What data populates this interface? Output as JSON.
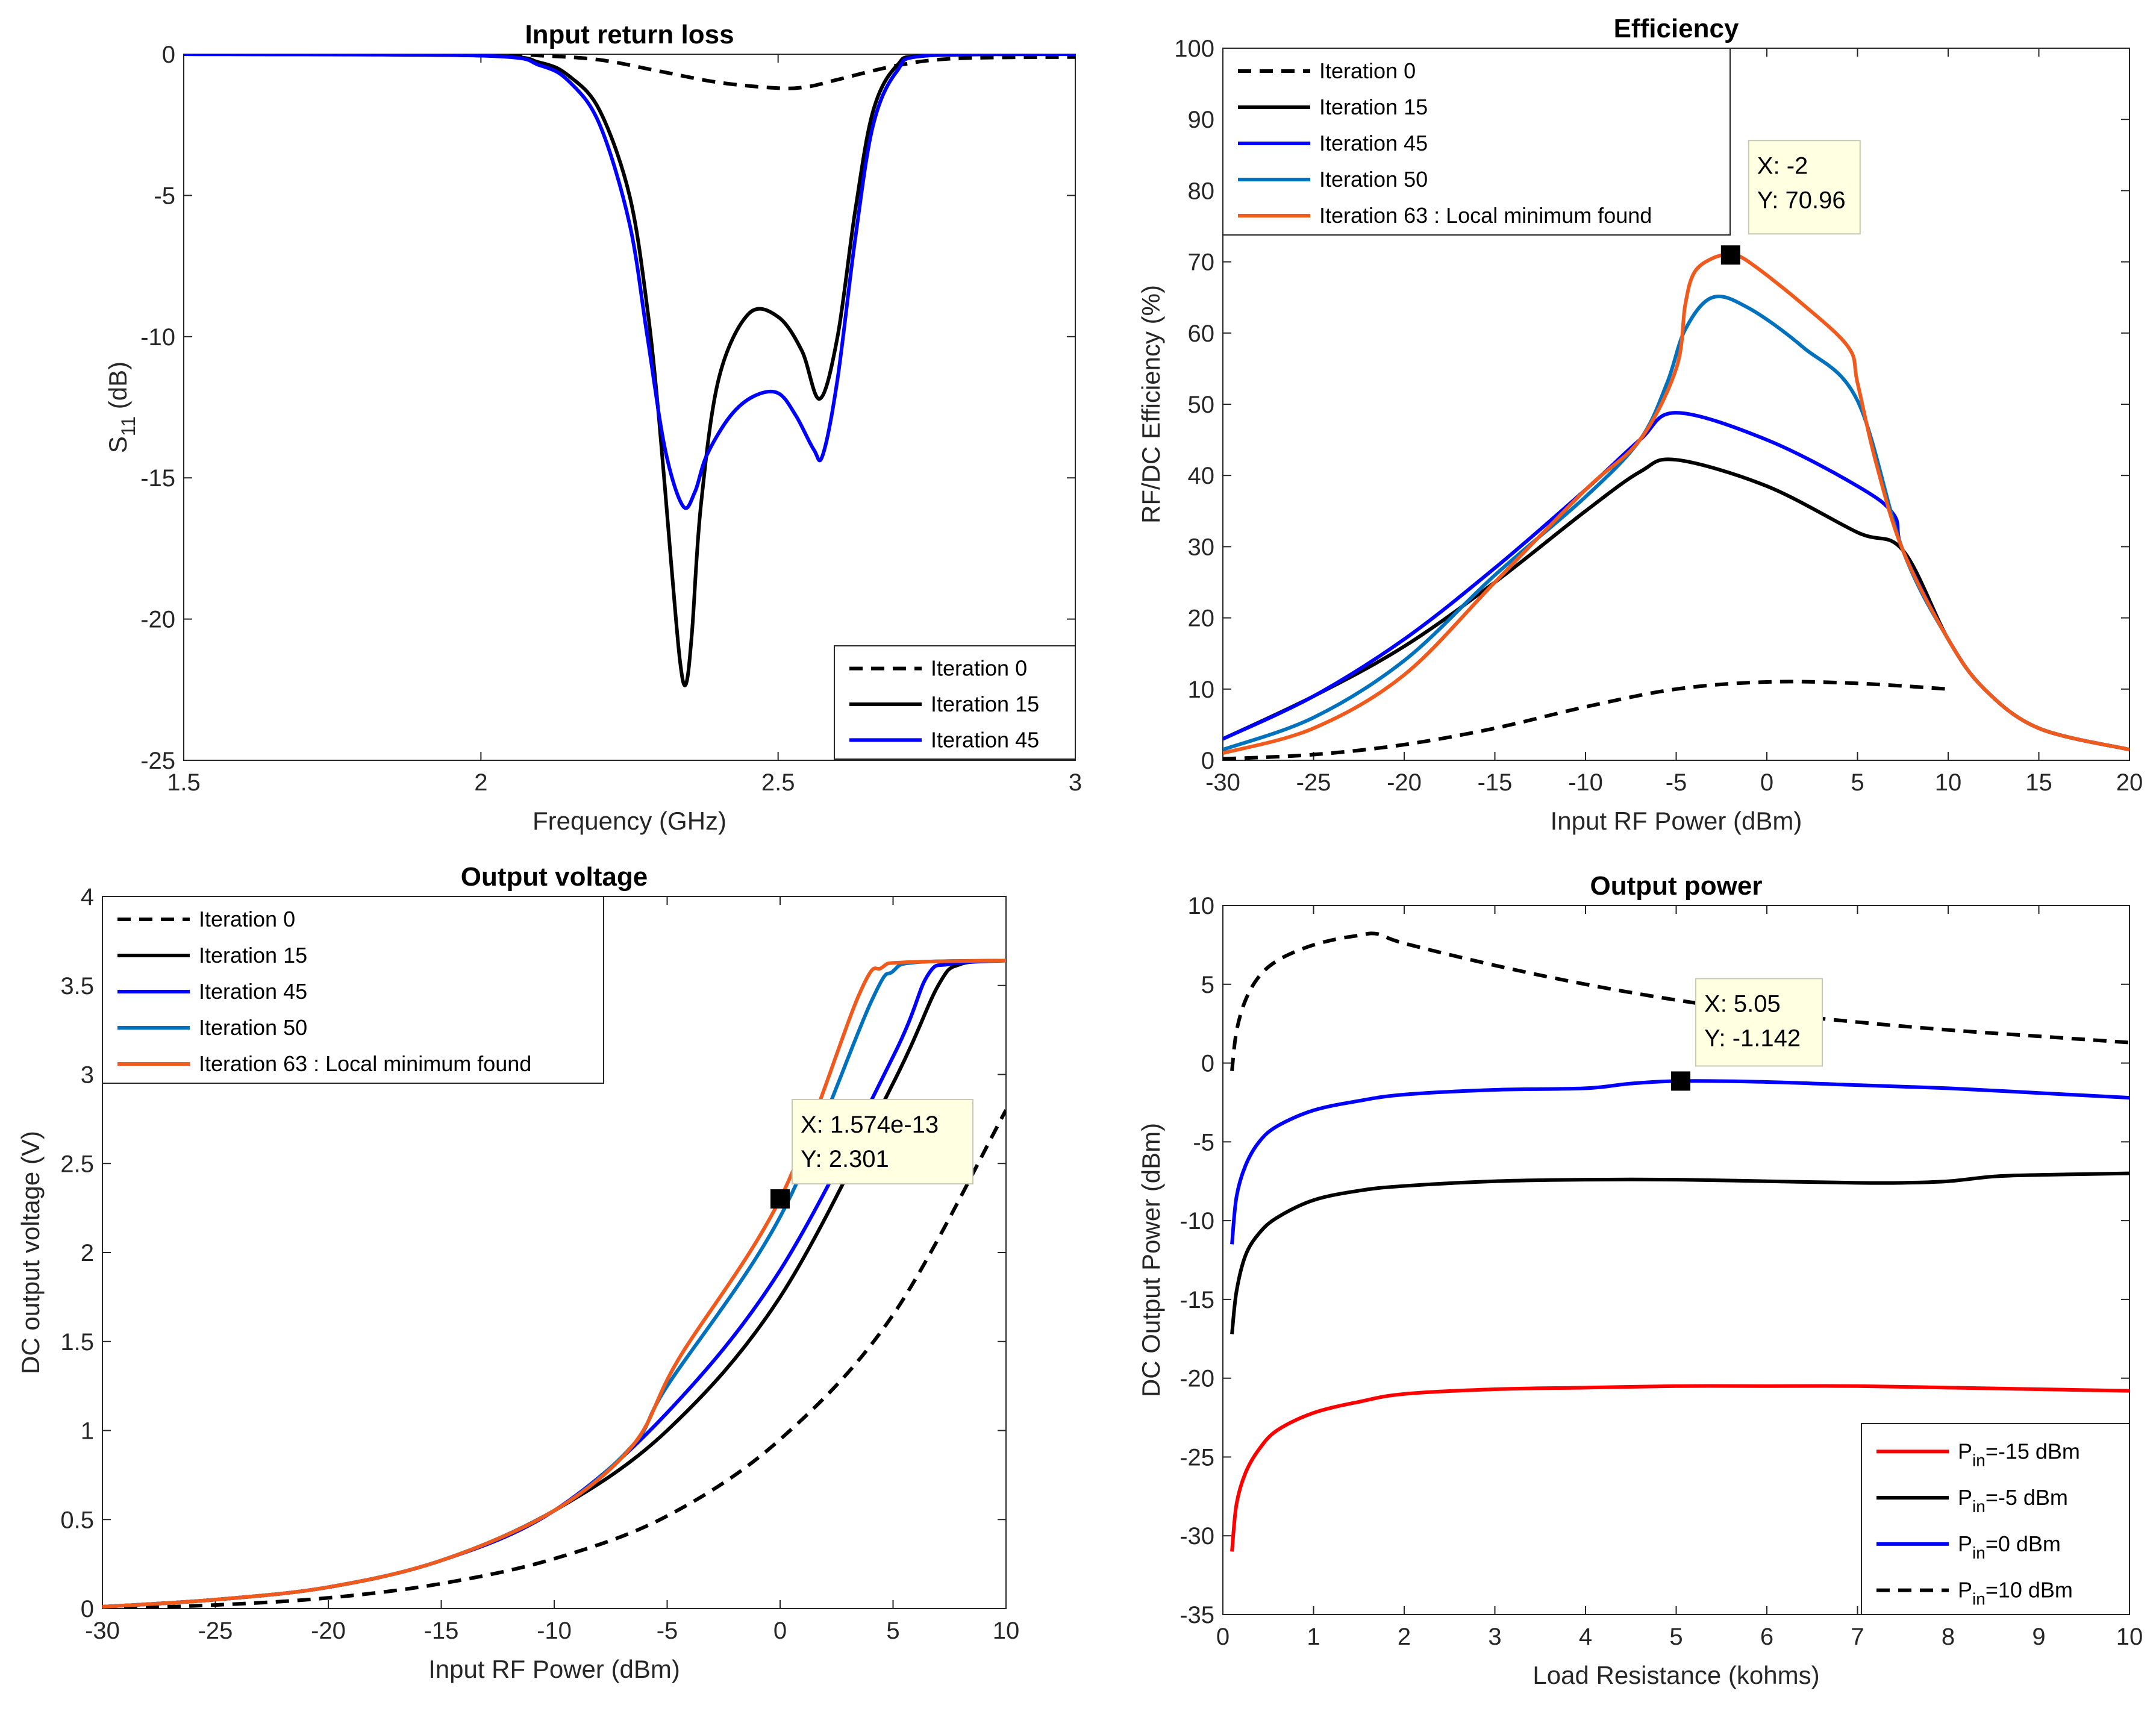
{
  "chart_data": [
    {
      "type": "line",
      "title": "Input return loss",
      "xlabel": "Frequency (GHz)",
      "ylabel": "S",
      "ylabel_sub": "11",
      "ylabel_unit": " (dB)",
      "xlim": [
        1.5,
        3
      ],
      "ylim": [
        -25,
        0
      ],
      "xticks": [
        1.5,
        2,
        2.5,
        3
      ],
      "yticks": [
        -25,
        -20,
        -15,
        -10,
        -5,
        0
      ],
      "xtick_labels": [
        "1.5",
        "2",
        "2.5",
        "3"
      ],
      "ytick_labels": [
        "-25",
        "-20",
        "-15",
        "-10",
        "-5",
        "0"
      ],
      "grid": false,
      "legend_position": "bottom-right",
      "series": [
        {
          "name": "Iteration 0",
          "color": "#000000",
          "style": "dashed",
          "x": [
            1.5,
            2.0,
            2.1,
            2.2,
            2.3,
            2.4,
            2.5,
            2.55,
            2.6,
            2.7,
            2.8,
            3.0
          ],
          "y": [
            0,
            0,
            -0.05,
            -0.2,
            -0.6,
            -1.0,
            -1.2,
            -1.15,
            -0.9,
            -0.4,
            -0.15,
            -0.1
          ]
        },
        {
          "name": "Iteration 15",
          "color": "#000000",
          "style": "solid",
          "x": [
            1.5,
            2.0,
            2.1,
            2.15,
            2.2,
            2.25,
            2.28,
            2.3,
            2.32,
            2.335,
            2.345,
            2.355,
            2.37,
            2.4,
            2.45,
            2.5,
            2.54,
            2.57,
            2.6,
            2.63,
            2.66,
            2.7,
            2.75,
            3.0
          ],
          "y": [
            0,
            -0.05,
            -0.3,
            -0.8,
            -2.0,
            -5.0,
            -9.0,
            -13.0,
            -18.0,
            -21.5,
            -22.3,
            -20.5,
            -16.0,
            -11.5,
            -9.2,
            -9.3,
            -10.5,
            -12.2,
            -10.0,
            -5.5,
            -2.0,
            -0.4,
            -0.05,
            0
          ]
        },
        {
          "name": "Iteration 45",
          "color": "#0000FF",
          "style": "solid",
          "x": [
            1.5,
            2.0,
            2.1,
            2.15,
            2.2,
            2.25,
            2.28,
            2.31,
            2.34,
            2.36,
            2.38,
            2.42,
            2.46,
            2.5,
            2.53,
            2.56,
            2.575,
            2.6,
            2.63,
            2.66,
            2.7,
            2.75,
            3.0
          ],
          "y": [
            0,
            -0.05,
            -0.4,
            -1.0,
            -2.5,
            -6.0,
            -10.0,
            -14.0,
            -16.0,
            -15.5,
            -14.2,
            -12.8,
            -12.1,
            -12.0,
            -12.8,
            -14.0,
            -14.2,
            -11.5,
            -6.5,
            -2.5,
            -0.6,
            -0.05,
            0
          ]
        }
      ]
    },
    {
      "type": "line",
      "title": "Efficiency",
      "xlabel": "Input RF Power (dBm)",
      "ylabel": "RF/DC Efficiency (%)",
      "xlim": [
        -30,
        20
      ],
      "ylim": [
        0,
        100
      ],
      "xticks": [
        -30,
        -25,
        -20,
        -15,
        -10,
        -5,
        0,
        5,
        10,
        15,
        20
      ],
      "yticks": [
        0,
        10,
        20,
        30,
        40,
        50,
        60,
        70,
        80,
        90,
        100
      ],
      "xtick_labels": [
        "-30",
        "-25",
        "-20",
        "-15",
        "-10",
        "-5",
        "0",
        "5",
        "10",
        "15",
        "20"
      ],
      "ytick_labels": [
        "0",
        "10",
        "20",
        "30",
        "40",
        "50",
        "60",
        "70",
        "80",
        "90",
        "100"
      ],
      "grid": false,
      "legend_position": "top-left",
      "annotation": {
        "x": -2,
        "y": 70.96,
        "line1": "X: -2",
        "line2": "Y: 70.96"
      },
      "series": [
        {
          "name": "Iteration 0",
          "color": "#000000",
          "style": "dashed",
          "x": [
            -30,
            -25,
            -20,
            -15,
            -10,
            -5,
            0,
            5,
            10
          ],
          "y": [
            0.2,
            0.8,
            2.2,
            4.5,
            7.5,
            10.0,
            11.0,
            10.8,
            10.0
          ]
        },
        {
          "name": "Iteration 15",
          "color": "#000000",
          "style": "solid",
          "x": [
            -30,
            -25,
            -20,
            -15,
            -10,
            -7,
            -5,
            0,
            5,
            7.5,
            10,
            12,
            15,
            20
          ],
          "y": [
            3.0,
            9.0,
            16.0,
            25.0,
            35.0,
            40.5,
            42.2,
            38.5,
            32.0,
            29.5,
            17.0,
            10.0,
            4.5,
            1.5
          ]
        },
        {
          "name": "Iteration 45",
          "color": "#0000FF",
          "style": "solid",
          "x": [
            -30,
            -25,
            -20,
            -15,
            -10,
            -7,
            -5,
            0,
            5,
            7,
            7.5,
            10,
            12,
            15,
            20
          ],
          "y": [
            3.0,
            9.0,
            17.0,
            27.0,
            38.0,
            45.0,
            48.8,
            45.0,
            38.5,
            34.5,
            29.5,
            17.0,
            10.0,
            4.5,
            1.5
          ]
        },
        {
          "name": "Iteration 50",
          "color": "#0072BD",
          "style": "solid",
          "x": [
            -30,
            -25,
            -20,
            -15,
            -10,
            -7,
            -5.5,
            -4.5,
            -3,
            -1,
            2,
            5,
            7.5,
            10,
            12,
            15,
            20
          ],
          "y": [
            1.5,
            6.0,
            14.0,
            26.0,
            37.0,
            45.0,
            53.0,
            60.5,
            65.0,
            63.5,
            58.0,
            50.5,
            29.5,
            17.0,
            10.0,
            4.5,
            1.5
          ]
        },
        {
          "name": "Iteration 63 : Local minimum found",
          "color": "#F05A1C",
          "style": "solid",
          "x": [
            -30,
            -25,
            -20,
            -15,
            -10,
            -7,
            -5,
            -4.5,
            -4,
            -3,
            -2,
            -1,
            2,
            4.5,
            5,
            6,
            7.5,
            10,
            12,
            15,
            20
          ],
          "y": [
            1.0,
            4.5,
            12.0,
            25.0,
            38.0,
            45.0,
            55.0,
            64.0,
            68.5,
            70.5,
            70.96,
            70.0,
            64.0,
            58.0,
            53.0,
            42.0,
            29.5,
            17.0,
            10.0,
            4.5,
            1.5
          ]
        }
      ]
    },
    {
      "type": "line",
      "title": "Output voltage",
      "xlabel": "Input RF Power (dBm)",
      "ylabel": "DC output voltage (V)",
      "xlim": [
        -30,
        10
      ],
      "ylim": [
        0,
        4
      ],
      "xticks": [
        -30,
        -25,
        -20,
        -15,
        -10,
        -5,
        0,
        5,
        10
      ],
      "yticks": [
        0,
        0.5,
        1,
        1.5,
        2,
        2.5,
        3,
        3.5,
        4
      ],
      "xtick_labels": [
        "-30",
        "-25",
        "-20",
        "-15",
        "-10",
        "-5",
        "0",
        "5",
        "10"
      ],
      "ytick_labels": [
        "0",
        "0.5",
        "1",
        "1.5",
        "2",
        "2.5",
        "3",
        "3.5",
        "4"
      ],
      "grid": false,
      "legend_position": "top-left",
      "annotation": {
        "x": 0,
        "y": 2.301,
        "line1": "X: 1.574e-13",
        "line2": "Y: 2.301"
      },
      "series": [
        {
          "name": "Iteration 0",
          "color": "#000000",
          "style": "dashed",
          "x": [
            -30,
            -25,
            -20,
            -15,
            -10,
            -5,
            0,
            5,
            10
          ],
          "y": [
            0.0,
            0.02,
            0.06,
            0.14,
            0.28,
            0.52,
            0.95,
            1.65,
            2.8
          ]
        },
        {
          "name": "Iteration 15",
          "color": "#000000",
          "style": "solid",
          "x": [
            -30,
            -25,
            -20,
            -15,
            -10,
            -5,
            0,
            5,
            7,
            8,
            10
          ],
          "y": [
            0.01,
            0.05,
            0.12,
            0.27,
            0.55,
            1.0,
            1.75,
            2.95,
            3.5,
            3.62,
            3.64
          ]
        },
        {
          "name": "Iteration 45",
          "color": "#0000FF",
          "style": "solid",
          "x": [
            -30,
            -25,
            -20,
            -15,
            -10,
            -5,
            0,
            5,
            6.5,
            7.5,
            10
          ],
          "y": [
            0.01,
            0.05,
            0.12,
            0.27,
            0.55,
            1.1,
            1.9,
            3.1,
            3.55,
            3.62,
            3.64
          ]
        },
        {
          "name": "Iteration 50",
          "color": "#0072BD",
          "style": "solid",
          "x": [
            -30,
            -25,
            -20,
            -15,
            -10,
            -6.5,
            -5,
            0,
            4,
            5,
            6,
            10
          ],
          "y": [
            0.01,
            0.05,
            0.12,
            0.27,
            0.55,
            0.92,
            1.25,
            2.2,
            3.4,
            3.58,
            3.63,
            3.64
          ]
        },
        {
          "name": "Iteration 63 : Local minimum found",
          "color": "#F05A1C",
          "style": "solid",
          "x": [
            -30,
            -25,
            -20,
            -15,
            -10,
            -6.5,
            -4.5,
            0,
            3.5,
            4.5,
            5.5,
            10
          ],
          "y": [
            0.01,
            0.05,
            0.12,
            0.27,
            0.55,
            0.92,
            1.4,
            2.301,
            3.45,
            3.6,
            3.63,
            3.64
          ]
        }
      ]
    },
    {
      "type": "line",
      "title": "Output power",
      "xlabel": "Load Resistance (kohms)",
      "ylabel": "DC Output Power (dBm)",
      "xlim": [
        0,
        10
      ],
      "ylim": [
        -35,
        10
      ],
      "xticks": [
        0,
        1,
        2,
        3,
        4,
        5,
        6,
        7,
        8,
        9,
        10
      ],
      "yticks": [
        -35,
        -30,
        -25,
        -20,
        -15,
        -10,
        -5,
        0,
        5,
        10
      ],
      "xtick_labels": [
        "0",
        "1",
        "2",
        "3",
        "4",
        "5",
        "6",
        "7",
        "8",
        "9",
        "10"
      ],
      "ytick_labels": [
        "-35",
        "-30",
        "-25",
        "-20",
        "-15",
        "-10",
        "-5",
        "0",
        "5",
        "10"
      ],
      "grid": false,
      "legend_position": "bottom-right",
      "annotation": {
        "x": 5.05,
        "y": -1.142,
        "line1": "X: 5.05",
        "line2": "Y: -1.142"
      },
      "series": [
        {
          "name": "P",
          "name_sub": "in",
          "name_rest": "=-15 dBm",
          "color": "#FF0000",
          "style": "solid",
          "x": [
            0.1,
            0.15,
            0.25,
            0.4,
            0.6,
            1.0,
            1.5,
            2,
            3,
            4,
            5,
            6,
            7,
            8,
            9,
            10
          ],
          "y": [
            -31.0,
            -28.0,
            -26.0,
            -24.5,
            -23.3,
            -22.2,
            -21.5,
            -21.0,
            -20.7,
            -20.6,
            -20.5,
            -20.5,
            -20.5,
            -20.6,
            -20.7,
            -20.8
          ]
        },
        {
          "name": "P",
          "name_sub": "in",
          "name_rest": "=-5 dBm",
          "color": "#000000",
          "style": "solid",
          "x": [
            0.1,
            0.15,
            0.25,
            0.4,
            0.6,
            1.0,
            1.5,
            2,
            3,
            4,
            5,
            6,
            7,
            7.5,
            8,
            8.5,
            9,
            10
          ],
          "y": [
            -17.2,
            -14.5,
            -12.2,
            -10.8,
            -9.8,
            -8.7,
            -8.1,
            -7.8,
            -7.5,
            -7.4,
            -7.4,
            -7.5,
            -7.6,
            -7.6,
            -7.5,
            -7.2,
            -7.1,
            -7.0
          ]
        },
        {
          "name": "P",
          "name_sub": "in",
          "name_rest": "=0 dBm",
          "color": "#0000FF",
          "style": "solid",
          "x": [
            0.1,
            0.15,
            0.25,
            0.4,
            0.6,
            1.0,
            1.5,
            2,
            3,
            4,
            4.5,
            5.05,
            6,
            7,
            8,
            9,
            10
          ],
          "y": [
            -11.5,
            -8.5,
            -6.5,
            -5.0,
            -4.0,
            -3.0,
            -2.4,
            -2.0,
            -1.7,
            -1.6,
            -1.3,
            -1.142,
            -1.2,
            -1.4,
            -1.6,
            -1.9,
            -2.2
          ]
        },
        {
          "name": "P",
          "name_sub": "in",
          "name_rest": "=10 dBm",
          "color": "#000000",
          "style": "dashed",
          "x": [
            0.1,
            0.15,
            0.25,
            0.4,
            0.6,
            0.9,
            1.2,
            1.5,
            1.7,
            2,
            3,
            4,
            5,
            6,
            7,
            8,
            9,
            10
          ],
          "y": [
            -0.5,
            2.0,
            4.0,
            5.5,
            6.5,
            7.3,
            7.8,
            8.1,
            8.2,
            7.6,
            6.2,
            5.0,
            4.0,
            3.2,
            2.6,
            2.1,
            1.7,
            1.3
          ]
        }
      ]
    }
  ]
}
